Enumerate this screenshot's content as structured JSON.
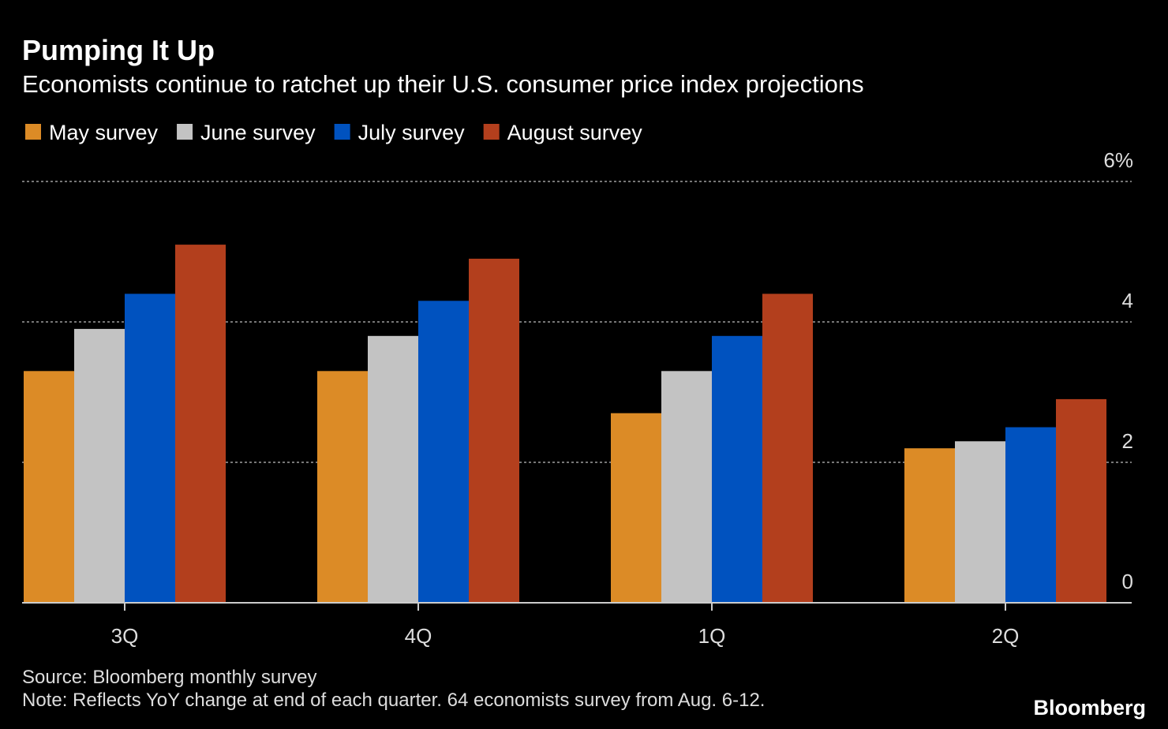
{
  "chart_data": {
    "type": "bar",
    "title": "Pumping It Up",
    "subtitle": "Economists continue to ratchet up their U.S. consumer price index projections",
    "categories": [
      "3Q",
      "4Q",
      "1Q",
      "2Q"
    ],
    "series": [
      {
        "name": "May survey",
        "color": "#dc8b26",
        "values": [
          3.3,
          3.3,
          2.7,
          2.2
        ]
      },
      {
        "name": "June survey",
        "color": "#c3c3c3",
        "values": [
          3.9,
          3.8,
          3.3,
          2.3
        ]
      },
      {
        "name": "July survey",
        "color": "#0052bf",
        "values": [
          4.4,
          4.3,
          3.8,
          2.5
        ]
      },
      {
        "name": "August survey",
        "color": "#b33f1d",
        "values": [
          5.1,
          4.9,
          4.4,
          2.9
        ]
      }
    ],
    "ylim": [
      0,
      6
    ],
    "yticks": [
      0,
      2,
      4,
      {
        "value": 6,
        "label": "6%"
      }
    ],
    "grid": true,
    "source": "Source: Bloomberg monthly survey",
    "note": "Note: Reflects YoY change at end of each quarter. 64 economists survey from Aug. 6-12.",
    "logo": "Bloomberg"
  }
}
